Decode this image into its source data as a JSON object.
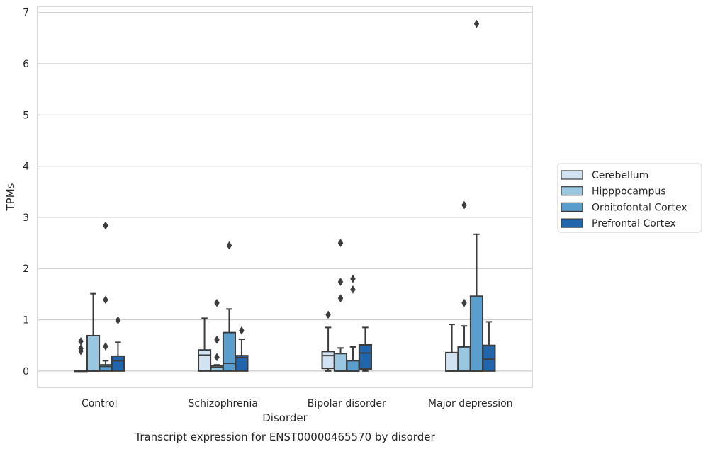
{
  "chart_data": {
    "type": "boxplot",
    "title": "Transcript expression for ENST00000465570 by disorder",
    "xlabel": "Disorder",
    "ylabel": "TPMs",
    "ylim": [
      -0.32,
      7.12
    ],
    "yticks": [
      0,
      1,
      2,
      3,
      4,
      5,
      6,
      7
    ],
    "grid": true,
    "legend_position": "right",
    "categories": [
      "Control",
      "Schizophrenia",
      "Bipolar disorder",
      "Major depression"
    ],
    "series": [
      {
        "name": "Cerebellum",
        "color": "#d1e2f2",
        "boxes": [
          {
            "whislo": 0,
            "q1": 0,
            "med": 0,
            "q3": 0,
            "whishi": 0,
            "fliers": [
              0.58,
              0.44,
              0.39
            ]
          },
          {
            "whislo": 0,
            "q1": 0,
            "med": 0.31,
            "q3": 0.41,
            "whishi": 1.03,
            "fliers": []
          },
          {
            "whislo": 0,
            "q1": 0.05,
            "med": 0.3,
            "q3": 0.38,
            "whishi": 0.85,
            "fliers": [
              1.1
            ]
          },
          {
            "whislo": 0,
            "q1": 0,
            "med": 0,
            "q3": 0.36,
            "whishi": 0.91,
            "fliers": []
          }
        ]
      },
      {
        "name": "Hipppocampus",
        "color": "#9ac7e0",
        "boxes": [
          {
            "whislo": 0,
            "q1": 0,
            "med": 0,
            "q3": 0.69,
            "whishi": 1.51,
            "fliers": []
          },
          {
            "whislo": 0,
            "q1": 0,
            "med": 0.07,
            "q3": 0.1,
            "whishi": 0.12,
            "fliers": [
              1.33,
              0.61,
              0.27
            ]
          },
          {
            "whislo": 0,
            "q1": 0,
            "med": 0,
            "q3": 0.34,
            "whishi": 0.45,
            "fliers": [
              2.5,
              1.74,
              1.42
            ]
          },
          {
            "whislo": 0,
            "q1": 0,
            "med": 0,
            "q3": 0.47,
            "whishi": 0.88,
            "fliers": [
              3.24,
              1.33
            ]
          }
        ]
      },
      {
        "name": "Orbitofontal Cortex",
        "color": "#5a9ecd",
        "boxes": [
          {
            "whislo": 0,
            "q1": 0,
            "med": 0.09,
            "q3": 0.12,
            "whishi": 0.2,
            "fliers": [
              2.84,
              1.39,
              0.48
            ]
          },
          {
            "whislo": 0,
            "q1": 0,
            "med": 0.15,
            "q3": 0.75,
            "whishi": 1.21,
            "fliers": [
              2.45
            ]
          },
          {
            "whislo": 0,
            "q1": 0,
            "med": 0,
            "q3": 0.2,
            "whishi": 0.47,
            "fliers": [
              1.8,
              1.59
            ]
          },
          {
            "whislo": 0,
            "q1": 0,
            "med": 0,
            "q3": 1.46,
            "whishi": 2.67,
            "fliers": [
              6.78
            ]
          }
        ]
      },
      {
        "name": "Prefrontal Cortex",
        "color": "#2166ac",
        "boxes": [
          {
            "whislo": 0,
            "q1": 0,
            "med": 0.2,
            "q3": 0.29,
            "whishi": 0.56,
            "fliers": [
              0.99
            ]
          },
          {
            "whislo": 0,
            "q1": 0,
            "med": 0.26,
            "q3": 0.3,
            "whishi": 0.62,
            "fliers": [
              0.79
            ]
          },
          {
            "whislo": 0,
            "q1": 0.04,
            "med": 0.35,
            "q3": 0.51,
            "whishi": 0.85,
            "fliers": []
          },
          {
            "whislo": 0,
            "q1": 0,
            "med": 0.23,
            "q3": 0.5,
            "whishi": 0.96,
            "fliers": []
          }
        ]
      }
    ]
  }
}
